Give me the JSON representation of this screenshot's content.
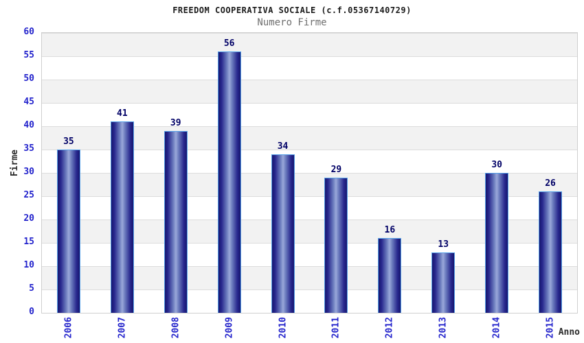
{
  "header": {
    "title": "FREEDOM COOPERATIVA SOCIALE (c.f.05367140729)",
    "subtitle": "Numero Firme"
  },
  "chart_data": {
    "type": "bar",
    "title": "FREEDOM COOPERATIVA SOCIALE (c.f.05367140729)",
    "subtitle": "Numero Firme",
    "xlabel": "Anno",
    "ylabel": "Firme",
    "categories": [
      "2006",
      "2007",
      "2008",
      "2009",
      "2010",
      "2011",
      "2012",
      "2013",
      "2014",
      "2015"
    ],
    "values": [
      35,
      41,
      39,
      56,
      34,
      29,
      16,
      13,
      30,
      26
    ],
    "ylim": [
      0,
      60
    ],
    "ytick_step": 5,
    "yticks": [
      0,
      5,
      10,
      15,
      20,
      25,
      30,
      35,
      40,
      45,
      50,
      55,
      60
    ],
    "grid": true,
    "legend": false,
    "bands_alternating": true,
    "colors": {
      "bar_dark": "#16166e",
      "bar_light": "#9aa8da",
      "bar_border": "#55a0e8",
      "tick_label": "#2323cc",
      "value_label": "#000066",
      "band_gray": "#f2f2f2",
      "band_white": "#ffffff",
      "grid_line": "#dcdcdc",
      "axis_title": "#2b2b2b",
      "subtitle": "#6e6e6e",
      "title": "#1a1a1a"
    }
  }
}
